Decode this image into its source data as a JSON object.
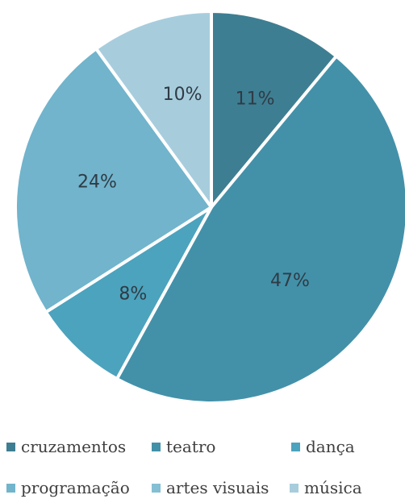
{
  "chart_data": {
    "type": "pie",
    "slices": [
      {
        "label": "cruzamentos",
        "value": 11,
        "display": "11%",
        "color": "#3e7e92"
      },
      {
        "label": "teatro",
        "value": 47,
        "display": "47%",
        "color": "#4391a9"
      },
      {
        "label": "dança",
        "value": 8,
        "display": "8%",
        "color": "#4ca3bd"
      },
      {
        "label": "programação",
        "value": 24,
        "display": "24%",
        "color": "#71b4cc"
      },
      {
        "label": "artes visuais",
        "value": 0,
        "display": "",
        "color": "#85bfd3"
      },
      {
        "label": "música",
        "value": 10,
        "display": "10%",
        "color": "#a7cddd"
      }
    ],
    "legend_position": "bottom",
    "start_angle": "12 o'clock",
    "direction": "clockwise"
  }
}
